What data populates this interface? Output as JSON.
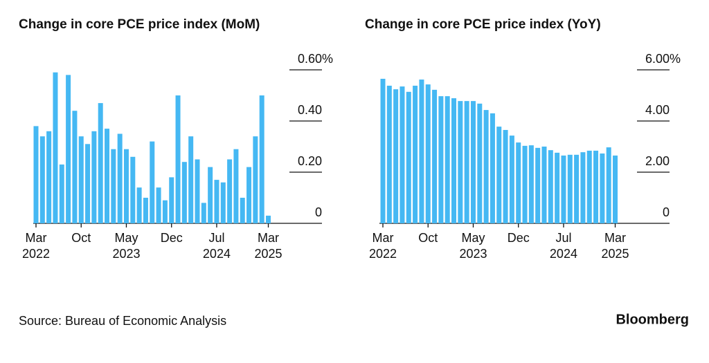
{
  "chart_data": [
    {
      "type": "bar",
      "title": "Change in core PCE price index (MoM)",
      "color": "#45b8f3",
      "categories": [
        "Mar 2022",
        null,
        null,
        null,
        null,
        null,
        null,
        "Oct",
        null,
        null,
        null,
        null,
        null,
        null,
        "May 2023",
        null,
        null,
        null,
        null,
        null,
        null,
        "Dec",
        null,
        null,
        null,
        null,
        null,
        null,
        "Jul 2024",
        null,
        null,
        null,
        null,
        null,
        null,
        null,
        "Mar 2025"
      ],
      "values": [
        0.38,
        0.34,
        0.36,
        0.59,
        0.23,
        0.58,
        0.44,
        0.34,
        0.31,
        0.36,
        0.47,
        0.37,
        0.29,
        0.35,
        0.29,
        0.26,
        0.14,
        0.1,
        0.32,
        0.14,
        0.09,
        0.18,
        0.5,
        0.24,
        0.34,
        0.25,
        0.08,
        0.22,
        0.17,
        0.16,
        0.25,
        0.29,
        0.1,
        0.22,
        0.34,
        0.5,
        0.03
      ],
      "ylim": [
        0,
        0.6
      ],
      "yticks": [
        0,
        {
          "value": 0.2,
          "label": "0.20"
        },
        {
          "value": 0.4,
          "label": "0.40"
        },
        {
          "value": 0.6,
          "label": "0.60%"
        }
      ]
    },
    {
      "type": "bar",
      "title": "Change in core PCE price index (YoY)",
      "color": "#45b8f3",
      "categories": [
        "Mar 2022",
        null,
        null,
        null,
        null,
        null,
        null,
        "Oct",
        null,
        null,
        null,
        null,
        null,
        null,
        "May 2023",
        null,
        null,
        null,
        null,
        null,
        null,
        "Dec",
        null,
        null,
        null,
        null,
        null,
        null,
        "Jul 2024",
        null,
        null,
        null,
        null,
        null,
        null,
        null,
        "Mar 2025"
      ],
      "values": [
        5.65,
        5.38,
        5.24,
        5.35,
        5.14,
        5.38,
        5.62,
        5.43,
        5.22,
        4.97,
        4.97,
        4.89,
        4.78,
        4.78,
        4.78,
        4.68,
        4.43,
        4.3,
        3.78,
        3.65,
        3.43,
        3.16,
        3.03,
        3.05,
        2.95,
        3.0,
        2.86,
        2.76,
        2.65,
        2.68,
        2.68,
        2.78,
        2.84,
        2.84,
        2.73,
        2.97,
        2.65
      ],
      "ylim": [
        0,
        6
      ],
      "yticks": [
        0,
        {
          "value": 2,
          "label": "2.00"
        },
        {
          "value": 4,
          "label": "4.00"
        },
        {
          "value": 6,
          "label": "6.00%"
        }
      ]
    }
  ],
  "source": "Source: Bureau of Economic Analysis",
  "brand": "Bloomberg"
}
